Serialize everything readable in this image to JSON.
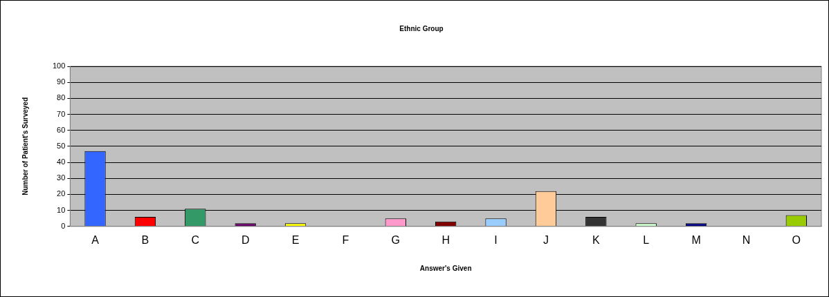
{
  "chart_data": {
    "type": "bar",
    "title": "Ethnic Group",
    "xlabel": "Answer's Given",
    "ylabel": "Number of Patient's Surveyed",
    "categories": [
      "A",
      "B",
      "C",
      "D",
      "E",
      "F",
      "G",
      "H",
      "I",
      "J",
      "K",
      "L",
      "M",
      "N",
      "O"
    ],
    "values": [
      47,
      6,
      11,
      2,
      2,
      0,
      5,
      3,
      5,
      22,
      6,
      2,
      2,
      0,
      7
    ],
    "colors": [
      "#3366ff",
      "#ff0000",
      "#339966",
      "#660066",
      "#ffff00",
      "#c0c0c0",
      "#ff99cc",
      "#800000",
      "#99ccff",
      "#ffcc99",
      "#333333",
      "#ccffcc",
      "#000080",
      "#c0c0c0",
      "#99cc00"
    ],
    "ylim": [
      0,
      100
    ],
    "yticks": [
      0,
      10,
      20,
      30,
      40,
      50,
      60,
      70,
      80,
      90,
      100
    ],
    "grid": "y",
    "legend": false
  }
}
